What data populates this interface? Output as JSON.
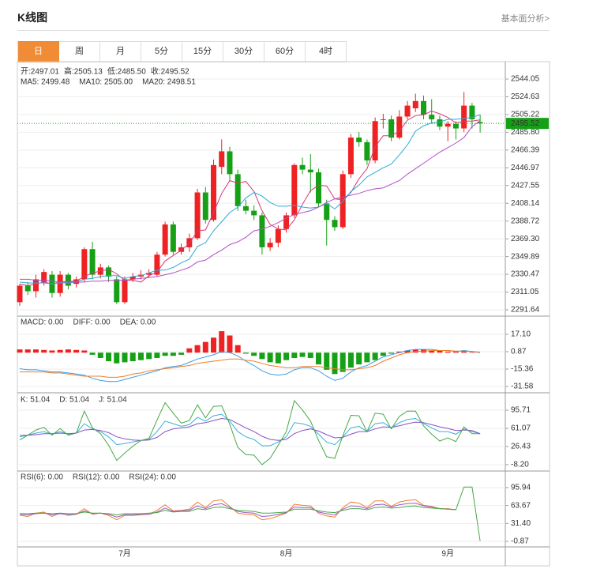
{
  "title": "K线图",
  "link": "基本面分析>",
  "tabs": [
    "日",
    "周",
    "月",
    "5分",
    "15分",
    "30分",
    "60分",
    "4时"
  ],
  "active_tab": 0,
  "chart_data": [
    {
      "type": "candlestick",
      "info": [
        {
          "label": "开:",
          "value": "2497.01"
        },
        {
          "label": "高:",
          "value": "2505.13"
        },
        {
          "label": "低:",
          "value": "2485.50"
        },
        {
          "label": "收:",
          "value": "2495.52"
        }
      ],
      "info_color": "#16a016",
      "categories": [
        null,
        null,
        null,
        null,
        null,
        null,
        null,
        null,
        null,
        null,
        null,
        null,
        null,
        "7月",
        null,
        null,
        null,
        null,
        null,
        null,
        null,
        null,
        null,
        null,
        null,
        null,
        null,
        null,
        null,
        null,
        null,
        null,
        null,
        "8月",
        null,
        null,
        null,
        null,
        null,
        null,
        null,
        null,
        null,
        null,
        null,
        null,
        null,
        null,
        null,
        null,
        null,
        null,
        null,
        "9月",
        null,
        null,
        null,
        null
      ],
      "open": [
        2300,
        2318,
        2312,
        2322,
        2330,
        2310,
        2330,
        2320,
        2325,
        2358,
        2330,
        2338,
        2325,
        2300,
        2325,
        2328,
        2330,
        2330,
        2352,
        2385,
        2355,
        2360,
        2370,
        2420,
        2390,
        2448,
        2465,
        2440,
        2405,
        2400,
        2395,
        2360,
        2365,
        2380,
        2395,
        2450,
        2445,
        2442,
        2408,
        2390,
        2382,
        2440,
        2480,
        2475,
        2455,
        2500,
        2500,
        2480,
        2503,
        2512,
        2520,
        2505,
        2500,
        2492,
        2495,
        2490,
        2515,
        2497.01
      ],
      "high": [
        2320,
        2322,
        2330,
        2336,
        2334,
        2334,
        2332,
        2328,
        2360,
        2366,
        2342,
        2340,
        2328,
        2328,
        2332,
        2335,
        2336,
        2355,
        2388,
        2388,
        2364,
        2375,
        2424,
        2426,
        2456,
        2478,
        2470,
        2445,
        2412,
        2406,
        2398,
        2370,
        2384,
        2398,
        2452,
        2458,
        2462,
        2446,
        2412,
        2394,
        2444,
        2484,
        2486,
        2478,
        2502,
        2506,
        2504,
        2510,
        2520,
        2528,
        2526,
        2522,
        2504,
        2498,
        2498,
        2530,
        2518,
        2505.13
      ],
      "low": [
        2296,
        2308,
        2305,
        2318,
        2305,
        2306,
        2314,
        2316,
        2322,
        2325,
        2326,
        2322,
        2298,
        2298,
        2322,
        2325,
        2327,
        2328,
        2350,
        2352,
        2352,
        2355,
        2368,
        2386,
        2388,
        2440,
        2432,
        2400,
        2396,
        2390,
        2352,
        2356,
        2360,
        2376,
        2392,
        2440,
        2420,
        2404,
        2362,
        2378,
        2380,
        2436,
        2470,
        2450,
        2452,
        2490,
        2476,
        2478,
        2500,
        2508,
        2500,
        2495,
        2488,
        2476,
        2478,
        2486,
        2490,
        2485.5
      ],
      "close": [
        2318,
        2312,
        2325,
        2333,
        2310,
        2330,
        2318,
        2325,
        2358,
        2330,
        2338,
        2328,
        2300,
        2325,
        2328,
        2330,
        2332,
        2352,
        2385,
        2355,
        2360,
        2370,
        2420,
        2390,
        2450,
        2465,
        2440,
        2405,
        2400,
        2395,
        2360,
        2365,
        2380,
        2395,
        2450,
        2445,
        2442,
        2408,
        2390,
        2382,
        2440,
        2480,
        2475,
        2455,
        2498,
        2500,
        2480,
        2503,
        2515,
        2520,
        2505,
        2500,
        2492,
        2495,
        2490,
        2515,
        2500,
        2495.52
      ],
      "up_color": "#ee2222",
      "down_color": "#16a016",
      "series": [
        {
          "name": "MA5: 2499.48",
          "color": "#d63a78",
          "values": [
            2320,
            2318,
            2320,
            2322,
            2320,
            2322,
            2323,
            2323,
            2328,
            2332,
            2334,
            2336,
            2331,
            2324,
            2324,
            2322,
            2329,
            2333,
            2345,
            2351,
            2357,
            2364,
            2378,
            2379,
            2398,
            2419,
            2433,
            2430,
            2432,
            2421,
            2400,
            2385,
            2380,
            2379,
            2390,
            2407,
            2422,
            2428,
            2427,
            2413,
            2412,
            2420,
            2435,
            2446,
            2470,
            2482,
            2482,
            2487,
            2499,
            2504,
            2505,
            2509,
            2506,
            2502,
            2496,
            2498,
            2498,
            2499.48
          ]
        },
        {
          "name": "MA10: 2505.00",
          "color": "#2eaad8",
          "values": [
            2322,
            2321,
            2321,
            2321,
            2320,
            2321,
            2321,
            2322,
            2325,
            2326,
            2328,
            2329,
            2329,
            2326,
            2328,
            2329,
            2332,
            2335,
            2335,
            2338,
            2343,
            2347,
            2361,
            2365,
            2378,
            2388,
            2398,
            2404,
            2414,
            2420,
            2416,
            2409,
            2405,
            2405,
            2406,
            2404,
            2403,
            2404,
            2408,
            2402,
            2410,
            2421,
            2428,
            2437,
            2442,
            2447,
            2451,
            2461,
            2472,
            2487,
            2493,
            2496,
            2497,
            2500,
            2500,
            2501,
            2502,
            2505
          ]
        },
        {
          "name": "MA20: 2498.51",
          "color": "#b24fc8",
          "values": [
            2325,
            2325,
            2324,
            2324,
            2323,
            2322,
            2322,
            2322,
            2322,
            2323,
            2323,
            2324,
            2324,
            2324,
            2325,
            2326,
            2327,
            2328,
            2330,
            2332,
            2335,
            2338,
            2344,
            2346,
            2352,
            2357,
            2363,
            2366,
            2371,
            2378,
            2380,
            2383,
            2387,
            2392,
            2396,
            2398,
            2400,
            2404,
            2409,
            2413,
            2415,
            2417,
            2419,
            2422,
            2424,
            2425,
            2429,
            2433,
            2440,
            2446,
            2452,
            2458,
            2464,
            2469,
            2474,
            2480,
            2492,
            2498.51
          ]
        }
      ],
      "ylim": [
        2284.73,
        2554.42
      ],
      "yticks": [
        2544.05,
        2524.63,
        2505.22,
        {
          "value": 2485.8,
          "label": "2485.80"
        },
        2466.39,
        2446.97,
        2427.55,
        2408.14,
        2388.72,
        {
          "value": 2369.3,
          "label": "2369.30"
        },
        2349.89,
        2330.47,
        2311.05,
        2291.64
      ],
      "grid": true
    },
    {
      "type": "macd",
      "series": [
        {
          "name": "MACD: 0.00",
          "color": "#c0392b",
          "kind": "bar",
          "values": [
            3,
            3,
            3,
            2.5,
            2,
            2.5,
            3,
            2.5,
            2,
            -2,
            -5,
            -8,
            -10,
            -9,
            -8,
            -7,
            -6,
            -5,
            -3,
            -3,
            -2,
            4,
            7,
            10,
            14,
            20,
            16,
            7,
            -1,
            -3,
            -6,
            -9,
            -10,
            -7,
            -5,
            -4,
            -5,
            -11,
            -16,
            -20,
            -18,
            -14,
            -11,
            -9,
            -7,
            -3,
            -1,
            1,
            2,
            3,
            3,
            2,
            2,
            1,
            1,
            1.5,
            0.5,
            0
          ]
        },
        {
          "name": "DIFF: 0.00",
          "color": "#3a9ee4",
          "values": [
            -15,
            -16,
            -16,
            -17,
            -18,
            -18,
            -19,
            -20,
            -21,
            -24,
            -26,
            -27,
            -27,
            -25,
            -23,
            -21,
            -19,
            -17,
            -14,
            -13,
            -12,
            -9,
            -6,
            -4,
            -2,
            1,
            0,
            -3,
            -8,
            -12,
            -17,
            -20,
            -21,
            -20,
            -16,
            -14,
            -14,
            -17,
            -22,
            -26,
            -24,
            -18,
            -14,
            -12,
            -8,
            -4,
            -2,
            0,
            2,
            3,
            3,
            3,
            2,
            2,
            1,
            2,
            1,
            0
          ]
        },
        {
          "name": "DEA: 0.00",
          "color": "#f07d2b",
          "values": [
            -18,
            -18,
            -18,
            -18,
            -19,
            -19,
            -20,
            -21,
            -22,
            -22,
            -22,
            -23,
            -23,
            -22,
            -20,
            -19,
            -17,
            -16,
            -15,
            -14,
            -13,
            -12,
            -10,
            -9,
            -8,
            -7,
            -6,
            -6,
            -7,
            -8,
            -10,
            -12,
            -13,
            -14,
            -14,
            -13,
            -13,
            -13,
            -14,
            -15,
            -16,
            -16,
            -15,
            -14,
            -12,
            -8,
            -5,
            -2,
            0,
            1,
            1.5,
            2,
            2,
            2,
            1.5,
            1.5,
            1,
            0.5
          ]
        }
      ],
      "up_color": "#ee2222",
      "down_color": "#16a016",
      "ylim": [
        -37.48,
        34.07
      ],
      "yticks": [
        {
          "value": 17.1,
          "label": "17.10"
        },
        0.87,
        -15.36,
        -31.58
      ],
      "grid": true
    },
    {
      "type": "kdj",
      "series": [
        {
          "name": "K: 51.04",
          "color": "#3ab0d8",
          "values": [
            45,
            48,
            52,
            55,
            50,
            55,
            50,
            52,
            70,
            60,
            55,
            45,
            30,
            32,
            35,
            38,
            40,
            55,
            75,
            70,
            65,
            68,
            82,
            75,
            85,
            88,
            75,
            55,
            45,
            40,
            28,
            28,
            35,
            45,
            72,
            70,
            65,
            50,
            35,
            30,
            45,
            62,
            65,
            55,
            70,
            72,
            62,
            72,
            78,
            80,
            70,
            62,
            55,
            55,
            50,
            60,
            55,
            51.04
          ]
        },
        {
          "name": "D: 51.04",
          "color": "#8a4fc4",
          "values": [
            48,
            48,
            49,
            51,
            51,
            52,
            51,
            52,
            58,
            59,
            57,
            53,
            45,
            41,
            39,
            38,
            39,
            44,
            55,
            60,
            62,
            64,
            70,
            72,
            76,
            80,
            78,
            70,
            62,
            55,
            46,
            40,
            38,
            40,
            51,
            57,
            60,
            56,
            49,
            43,
            44,
            50,
            55,
            55,
            60,
            64,
            63,
            66,
            70,
            73,
            72,
            68,
            64,
            61,
            57,
            58,
            57,
            51.04
          ]
        },
        {
          "name": "J: 51.04",
          "color": "#47a847",
          "values": [
            39,
            48,
            58,
            63,
            48,
            61,
            48,
            52,
            94,
            62,
            51,
            29,
            0,
            14,
            27,
            38,
            42,
            77,
            110,
            90,
            71,
            76,
            106,
            81,
            103,
            104,
            69,
            25,
            11,
            10,
            -8,
            4,
            29,
            55,
            114,
            96,
            75,
            38,
            7,
            4,
            47,
            86,
            85,
            55,
            90,
            88,
            60,
            84,
            94,
            94,
            66,
            50,
            37,
            43,
            36,
            64,
            51,
            51.04
          ]
        }
      ],
      "ylim": [
        -20.25,
        128.9
      ],
      "yticks": [
        95.71,
        61.07,
        26.43,
        {
          "value": -8.2,
          "label": "-8.20"
        }
      ],
      "grid": true
    },
    {
      "type": "rsi",
      "series": [
        {
          "name": "RSI(6): 0.00",
          "color": "#f07d2b",
          "values": [
            46,
            44,
            50,
            52,
            44,
            50,
            46,
            48,
            58,
            48,
            50,
            46,
            38,
            46,
            46,
            47,
            48,
            55,
            65,
            54,
            55,
            57,
            70,
            60,
            72,
            74,
            62,
            50,
            48,
            47,
            38,
            40,
            45,
            50,
            66,
            64,
            63,
            50,
            45,
            43,
            60,
            70,
            68,
            60,
            72,
            72,
            62,
            70,
            73,
            74,
            64,
            62,
            58,
            58,
            56,
            null,
            null,
            null
          ]
        },
        {
          "name": "RSI(12): 0.00",
          "color": "#9b59c7",
          "values": [
            48,
            47,
            49,
            50,
            47,
            49,
            47,
            48,
            54,
            49,
            50,
            48,
            43,
            47,
            47,
            48,
            48,
            52,
            59,
            53,
            54,
            55,
            63,
            58,
            65,
            67,
            60,
            53,
            51,
            50,
            44,
            45,
            48,
            51,
            61,
            60,
            60,
            52,
            49,
            47,
            57,
            63,
            62,
            58,
            65,
            66,
            61,
            65,
            67,
            68,
            63,
            61,
            58,
            57,
            56,
            null,
            null,
            null
          ]
        },
        {
          "name": "RSI(24): 0.00",
          "color": "#47a847",
          "values": [
            49,
            49,
            50,
            50,
            49,
            50,
            49,
            49,
            52,
            50,
            50,
            49,
            47,
            49,
            49,
            49,
            50,
            51,
            55,
            52,
            53,
            53,
            58,
            56,
            60,
            61,
            58,
            55,
            54,
            53,
            50,
            50,
            51,
            52,
            57,
            57,
            57,
            54,
            52,
            51,
            55,
            58,
            58,
            56,
            60,
            61,
            59,
            60,
            62,
            63,
            60,
            59,
            58,
            57,
            56,
            97,
            97,
            0
          ]
        }
      ],
      "ylim": [
        -10.84,
        125.8
      ],
      "yticks": [
        95.94,
        63.67,
        {
          "value": 31.4,
          "label": "31.40"
        },
        -0.87
      ],
      "grid": true
    }
  ]
}
